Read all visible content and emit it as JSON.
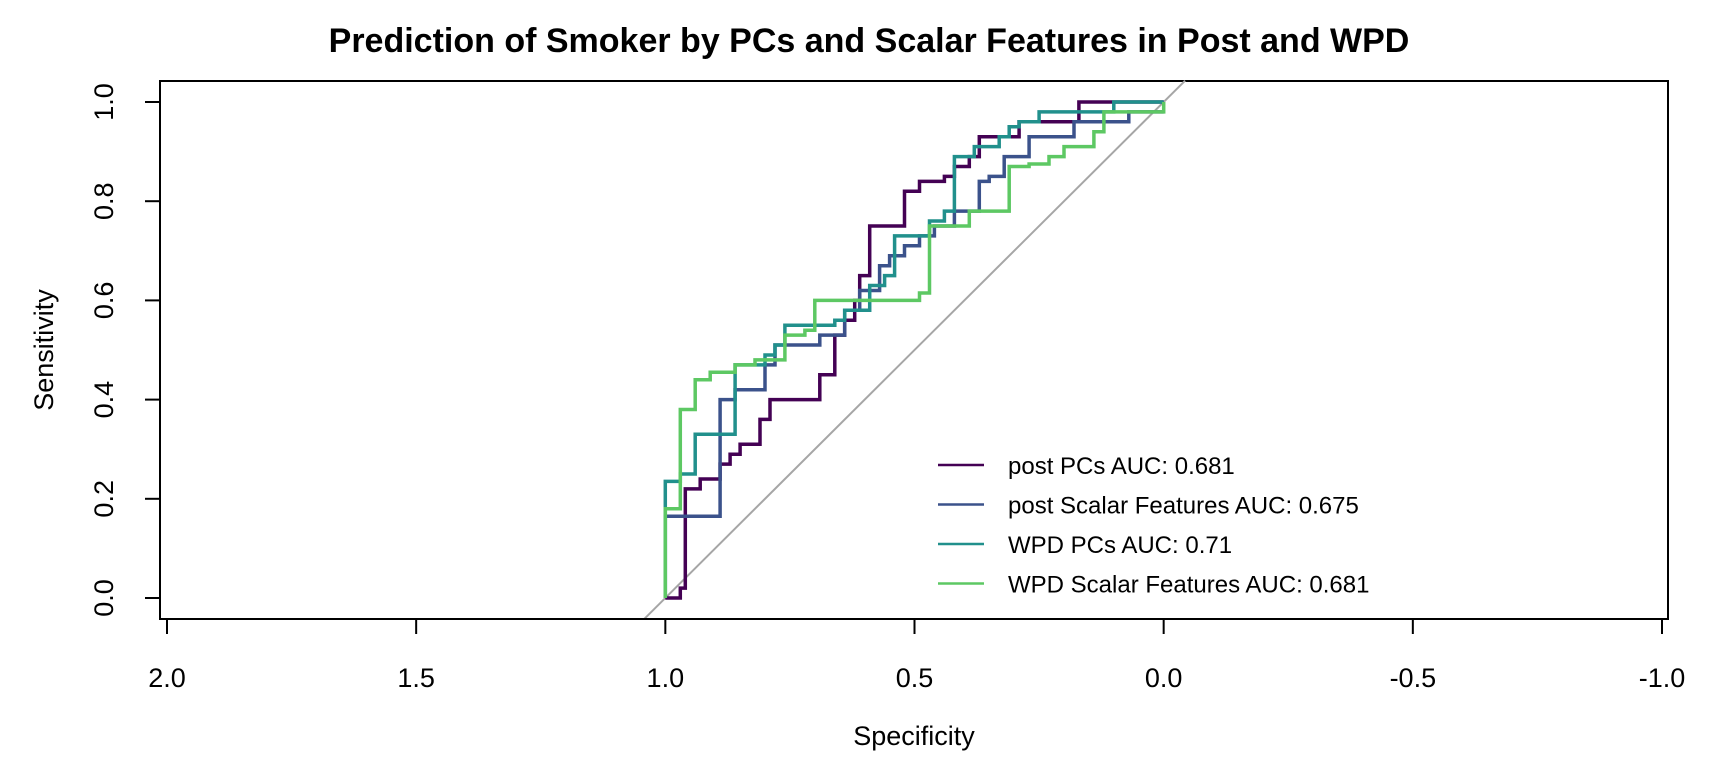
{
  "chart_data": {
    "type": "line",
    "title": "Prediction of Smoker by PCs and Scalar Features in Post and WPD",
    "xlabel": "Specificity",
    "ylabel": "Sensitivity",
    "xlim": [
      2.0,
      -1.0
    ],
    "ylim": [
      0.0,
      1.0
    ],
    "x_reversed": true,
    "x_ticks": [
      "2.0",
      "1.5",
      "1.0",
      "0.5",
      "0.0",
      "-0.5",
      "-1.0"
    ],
    "x_tick_values": [
      2.0,
      1.5,
      1.0,
      0.5,
      0.0,
      -0.5,
      -1.0
    ],
    "y_ticks": [
      "0.0",
      "0.2",
      "0.4",
      "0.6",
      "0.8",
      "1.0"
    ],
    "y_tick_values": [
      0.0,
      0.2,
      0.4,
      0.6,
      0.8,
      1.0
    ],
    "grid": false,
    "legend_position": "bottom-right",
    "reference_line": {
      "from": [
        1.0,
        0.0
      ],
      "to": [
        0.0,
        1.0
      ],
      "color": "#a6a6a6"
    },
    "series": [
      {
        "name": "post PCs AUC: 0.681",
        "color": "#440154",
        "points": [
          [
            1.0,
            0.0
          ],
          [
            0.97,
            0.0
          ],
          [
            0.97,
            0.02
          ],
          [
            0.96,
            0.02
          ],
          [
            0.96,
            0.22
          ],
          [
            0.93,
            0.22
          ],
          [
            0.93,
            0.24
          ],
          [
            0.89,
            0.24
          ],
          [
            0.89,
            0.27
          ],
          [
            0.87,
            0.27
          ],
          [
            0.87,
            0.29
          ],
          [
            0.85,
            0.29
          ],
          [
            0.85,
            0.31
          ],
          [
            0.81,
            0.31
          ],
          [
            0.81,
            0.36
          ],
          [
            0.79,
            0.36
          ],
          [
            0.79,
            0.4
          ],
          [
            0.69,
            0.4
          ],
          [
            0.69,
            0.45
          ],
          [
            0.66,
            0.45
          ],
          [
            0.66,
            0.53
          ],
          [
            0.64,
            0.53
          ],
          [
            0.64,
            0.56
          ],
          [
            0.62,
            0.56
          ],
          [
            0.62,
            0.6
          ],
          [
            0.61,
            0.6
          ],
          [
            0.61,
            0.65
          ],
          [
            0.59,
            0.65
          ],
          [
            0.59,
            0.75
          ],
          [
            0.52,
            0.75
          ],
          [
            0.52,
            0.82
          ],
          [
            0.49,
            0.82
          ],
          [
            0.49,
            0.84
          ],
          [
            0.44,
            0.84
          ],
          [
            0.44,
            0.85
          ],
          [
            0.42,
            0.85
          ],
          [
            0.42,
            0.87
          ],
          [
            0.39,
            0.87
          ],
          [
            0.39,
            0.89
          ],
          [
            0.37,
            0.89
          ],
          [
            0.37,
            0.93
          ],
          [
            0.29,
            0.93
          ],
          [
            0.29,
            0.96
          ],
          [
            0.17,
            0.96
          ],
          [
            0.17,
            1.0
          ],
          [
            0.0,
            1.0
          ]
        ]
      },
      {
        "name": "post Scalar Features AUC: 0.675",
        "color": "#3b528b",
        "points": [
          [
            1.0,
            0.0
          ],
          [
            1.0,
            0.165
          ],
          [
            0.89,
            0.165
          ],
          [
            0.89,
            0.4
          ],
          [
            0.86,
            0.4
          ],
          [
            0.86,
            0.42
          ],
          [
            0.8,
            0.42
          ],
          [
            0.8,
            0.47
          ],
          [
            0.78,
            0.47
          ],
          [
            0.78,
            0.51
          ],
          [
            0.69,
            0.51
          ],
          [
            0.69,
            0.53
          ],
          [
            0.64,
            0.53
          ],
          [
            0.64,
            0.58
          ],
          [
            0.61,
            0.58
          ],
          [
            0.61,
            0.62
          ],
          [
            0.57,
            0.62
          ],
          [
            0.57,
            0.67
          ],
          [
            0.55,
            0.67
          ],
          [
            0.55,
            0.69
          ],
          [
            0.52,
            0.69
          ],
          [
            0.52,
            0.71
          ],
          [
            0.49,
            0.71
          ],
          [
            0.49,
            0.73
          ],
          [
            0.46,
            0.73
          ],
          [
            0.46,
            0.75
          ],
          [
            0.42,
            0.75
          ],
          [
            0.42,
            0.78
          ],
          [
            0.37,
            0.78
          ],
          [
            0.37,
            0.84
          ],
          [
            0.35,
            0.84
          ],
          [
            0.35,
            0.85
          ],
          [
            0.32,
            0.85
          ],
          [
            0.32,
            0.89
          ],
          [
            0.27,
            0.89
          ],
          [
            0.27,
            0.93
          ],
          [
            0.18,
            0.93
          ],
          [
            0.18,
            0.96
          ],
          [
            0.07,
            0.96
          ],
          [
            0.07,
            0.98
          ],
          [
            0.0,
            0.98
          ]
        ]
      },
      {
        "name": "WPD PCs AUC: 0.71",
        "color": "#21908c",
        "points": [
          [
            1.0,
            0.0
          ],
          [
            1.0,
            0.235
          ],
          [
            0.97,
            0.235
          ],
          [
            0.97,
            0.25
          ],
          [
            0.94,
            0.25
          ],
          [
            0.94,
            0.33
          ],
          [
            0.89,
            0.33
          ],
          [
            0.89,
            0.33
          ],
          [
            0.86,
            0.33
          ],
          [
            0.86,
            0.47
          ],
          [
            0.8,
            0.47
          ],
          [
            0.8,
            0.49
          ],
          [
            0.78,
            0.49
          ],
          [
            0.78,
            0.51
          ],
          [
            0.76,
            0.51
          ],
          [
            0.76,
            0.55
          ],
          [
            0.73,
            0.55
          ],
          [
            0.73,
            0.55
          ],
          [
            0.66,
            0.55
          ],
          [
            0.66,
            0.56
          ],
          [
            0.64,
            0.56
          ],
          [
            0.64,
            0.58
          ],
          [
            0.59,
            0.58
          ],
          [
            0.59,
            0.63
          ],
          [
            0.56,
            0.63
          ],
          [
            0.56,
            0.65
          ],
          [
            0.54,
            0.65
          ],
          [
            0.54,
            0.73
          ],
          [
            0.47,
            0.73
          ],
          [
            0.47,
            0.76
          ],
          [
            0.44,
            0.76
          ],
          [
            0.44,
            0.78
          ],
          [
            0.42,
            0.78
          ],
          [
            0.42,
            0.89
          ],
          [
            0.38,
            0.89
          ],
          [
            0.38,
            0.91
          ],
          [
            0.33,
            0.91
          ],
          [
            0.33,
            0.93
          ],
          [
            0.31,
            0.93
          ],
          [
            0.31,
            0.95
          ],
          [
            0.29,
            0.95
          ],
          [
            0.29,
            0.96
          ],
          [
            0.25,
            0.96
          ],
          [
            0.25,
            0.98
          ],
          [
            0.1,
            0.98
          ],
          [
            0.1,
            1.0
          ],
          [
            0.0,
            1.0
          ]
        ]
      },
      {
        "name": "WPD Scalar Features AUC: 0.681",
        "color": "#5dc863",
        "points": [
          [
            1.0,
            0.0
          ],
          [
            1.0,
            0.18
          ],
          [
            0.97,
            0.18
          ],
          [
            0.97,
            0.38
          ],
          [
            0.94,
            0.38
          ],
          [
            0.94,
            0.44
          ],
          [
            0.91,
            0.44
          ],
          [
            0.91,
            0.455
          ],
          [
            0.86,
            0.455
          ],
          [
            0.86,
            0.47
          ],
          [
            0.82,
            0.47
          ],
          [
            0.82,
            0.48
          ],
          [
            0.76,
            0.48
          ],
          [
            0.76,
            0.53
          ],
          [
            0.72,
            0.53
          ],
          [
            0.72,
            0.54
          ],
          [
            0.7,
            0.54
          ],
          [
            0.7,
            0.6
          ],
          [
            0.64,
            0.6
          ],
          [
            0.64,
            0.6
          ],
          [
            0.53,
            0.6
          ],
          [
            0.53,
            0.6
          ],
          [
            0.49,
            0.6
          ],
          [
            0.49,
            0.615
          ],
          [
            0.47,
            0.615
          ],
          [
            0.47,
            0.75
          ],
          [
            0.39,
            0.75
          ],
          [
            0.39,
            0.78
          ],
          [
            0.31,
            0.78
          ],
          [
            0.31,
            0.87
          ],
          [
            0.27,
            0.87
          ],
          [
            0.27,
            0.875
          ],
          [
            0.23,
            0.875
          ],
          [
            0.23,
            0.89
          ],
          [
            0.2,
            0.89
          ],
          [
            0.2,
            0.91
          ],
          [
            0.14,
            0.91
          ],
          [
            0.14,
            0.94
          ],
          [
            0.12,
            0.94
          ],
          [
            0.12,
            0.98
          ],
          [
            0.0,
            0.98
          ],
          [
            0.0,
            1.0
          ]
        ]
      }
    ]
  }
}
